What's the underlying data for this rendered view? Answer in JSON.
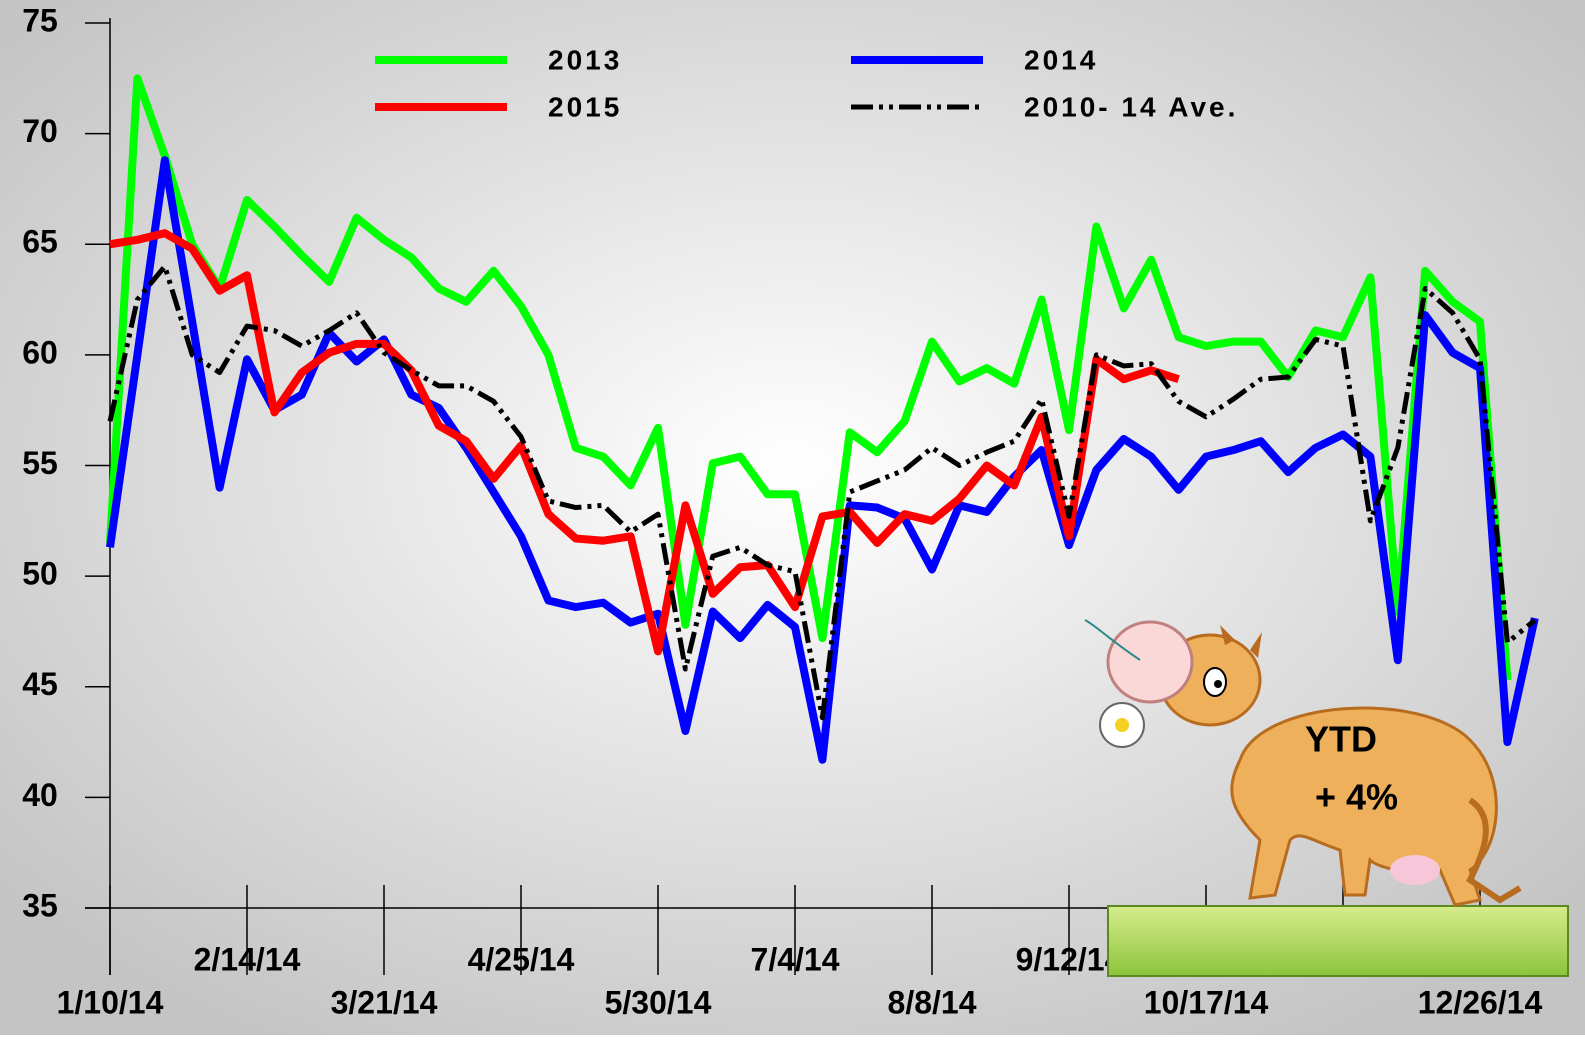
{
  "chart_data": {
    "type": "line",
    "categories": [
      "1/10/14",
      null,
      null,
      null,
      null,
      "2/14/14",
      null,
      null,
      null,
      null,
      "3/21/14",
      null,
      null,
      null,
      null,
      "4/25/14",
      null,
      null,
      null,
      null,
      "5/30/14",
      null,
      null,
      null,
      null,
      "7/4/14",
      null,
      null,
      null,
      null,
      "8/8/14",
      null,
      null,
      null,
      null,
      "9/12/14",
      null,
      null,
      null,
      null,
      "10/17/14",
      null,
      null,
      null,
      null,
      null,
      null,
      null,
      null,
      null,
      "12/26/14",
      null,
      null
    ],
    "series": [
      {
        "name": "2013",
        "color": "#00ff00",
        "dashed": false,
        "values": [
          51.5,
          72.5,
          69,
          65,
          63,
          67,
          65.8,
          64.5,
          63.3,
          66.2,
          65.2,
          64.4,
          63,
          62.4,
          63.8,
          62.2,
          60,
          55.8,
          55.4,
          54.1,
          56.7,
          47.8,
          55.1,
          55.4,
          53.7,
          53.7,
          47.2,
          56.5,
          55.6,
          57,
          60.6,
          58.8,
          59.4,
          58.7,
          62.5,
          56.6,
          65.8,
          62.1,
          64.3,
          60.8,
          60.4,
          60.6,
          60.6,
          59,
          61.1,
          60.8,
          63.5,
          48.4,
          63.8,
          62.4,
          61.5,
          45.3,
          null
        ]
      },
      {
        "name": "2014",
        "color": "#0000ff",
        "dashed": false,
        "values": [
          51.3,
          60,
          68.8,
          61.5,
          54,
          59.8,
          57.5,
          58.2,
          61,
          59.7,
          60.7,
          58.2,
          57.6,
          55.8,
          53.8,
          51.8,
          48.9,
          48.6,
          48.8,
          47.9,
          48.3,
          43,
          48.4,
          47.2,
          48.7,
          47.7,
          41.7,
          53.2,
          53.1,
          52.6,
          50.3,
          53.2,
          52.9,
          54.5,
          55.7,
          51.4,
          54.8,
          56.2,
          55.4,
          53.9,
          55.4,
          55.7,
          56.1,
          54.7,
          55.8,
          56.4,
          55.4,
          46.2,
          61.8,
          60.1,
          59.4,
          42.5,
          48.1
        ]
      },
      {
        "name": "2015",
        "color": "#ff0000",
        "dashed": false,
        "values": [
          65,
          65.2,
          65.5,
          64.8,
          62.9,
          63.6,
          57.4,
          59.2,
          60.1,
          60.5,
          60.5,
          59.3,
          56.8,
          56.1,
          54.4,
          55.9,
          52.8,
          51.7,
          51.6,
          51.8,
          46.6,
          53.2,
          49.2,
          50.4,
          50.5,
          48.6,
          52.7,
          52.9,
          51.5,
          52.8,
          52.5,
          53.5,
          55,
          54.1,
          57.2,
          51.8,
          59.8,
          58.9,
          59.3,
          58.9,
          null,
          null,
          null,
          null,
          null,
          null,
          null,
          null,
          null,
          null,
          null,
          null,
          null
        ]
      },
      {
        "name": "2010- 14 Ave.",
        "color": "#000000",
        "dashed": true,
        "values": [
          57,
          62.5,
          64,
          60,
          59.2,
          61.3,
          61.1,
          60.4,
          61.1,
          61.9,
          60.1,
          59.3,
          58.6,
          58.6,
          57.9,
          56.3,
          53.4,
          53.1,
          53.2,
          52,
          52.8,
          45.8,
          50.9,
          51.3,
          50.5,
          50.2,
          43.6,
          53.8,
          54.3,
          54.8,
          55.8,
          55,
          55.6,
          56.1,
          58,
          52.7,
          60,
          59.5,
          59.6,
          57.9,
          57.2,
          58,
          58.9,
          59,
          60.7,
          60.4,
          52.5,
          55.8,
          63,
          61.9,
          59.8,
          47,
          48
        ]
      }
    ],
    "ylim": [
      35,
      75
    ],
    "yticks": [
      35,
      40,
      45,
      50,
      55,
      60,
      65,
      70,
      75
    ],
    "annotations": [
      "YTD",
      "+ 4%"
    ]
  }
}
